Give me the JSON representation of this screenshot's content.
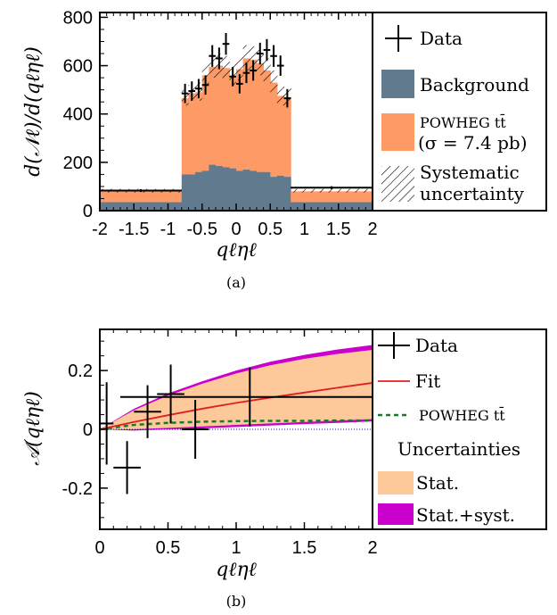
{
  "chart_data": [
    {
      "panel": "a",
      "type": "bar",
      "caption": "(a)",
      "xlabel": "qℓηℓ",
      "ylabel": "d(𝒩ℓ)/d(qℓηℓ)",
      "xlim": [
        -2,
        2
      ],
      "ylim": [
        0,
        820
      ],
      "xticks": [
        "-2",
        "-1.5",
        "-1",
        "-0.5",
        "0",
        "0.5",
        "1",
        "1.5",
        "2"
      ],
      "yticks": [
        "0",
        "200",
        "400",
        "600",
        "800"
      ],
      "grid": false,
      "legend_placement": "right",
      "colors": {
        "signal": "#fd9a66",
        "background": "#617a8e",
        "data": "#000000"
      },
      "bin_edges": [
        -2,
        -0.8,
        -0.7,
        -0.6,
        -0.5,
        -0.4,
        -0.3,
        -0.2,
        -0.1,
        0,
        0.1,
        0.2,
        0.3,
        0.4,
        0.5,
        0.6,
        0.7,
        0.8,
        2
      ],
      "series": [
        {
          "name": "Background",
          "values": [
            35,
            150,
            150,
            160,
            165,
            190,
            185,
            180,
            175,
            165,
            170,
            165,
            160,
            160,
            140,
            145,
            140,
            35
          ]
        },
        {
          "name": "POWHEG tt̄ (σ = 7.4 pb)",
          "values": [
            45,
            315,
            335,
            330,
            395,
            405,
            415,
            410,
            385,
            420,
            460,
            460,
            450,
            420,
            390,
            330,
            330,
            45
          ]
        }
      ],
      "systematic_band": {
        "name": "Systematic uncertainty",
        "up": [
          10,
          35,
          35,
          40,
          45,
          50,
          50,
          50,
          50,
          50,
          55,
          55,
          55,
          50,
          50,
          45,
          40,
          10
        ],
        "down": [
          5,
          30,
          30,
          35,
          40,
          45,
          45,
          45,
          45,
          45,
          50,
          50,
          50,
          45,
          45,
          40,
          35,
          5
        ]
      },
      "data": {
        "name": "Data",
        "x": [
          -1.4,
          -0.75,
          -0.65,
          -0.55,
          -0.45,
          -0.35,
          -0.25,
          -0.15,
          -0.05,
          0.05,
          0.15,
          0.25,
          0.35,
          0.45,
          0.55,
          0.65,
          0.75,
          1.4
        ],
        "xerr": [
          0.6,
          0.05,
          0.05,
          0.05,
          0.05,
          0.05,
          0.05,
          0.05,
          0.05,
          0.05,
          0.05,
          0.05,
          0.05,
          0.05,
          0.05,
          0.05,
          0.05,
          0.6
        ],
        "y": [
          83,
          485,
          495,
          505,
          520,
          640,
          630,
          690,
          555,
          525,
          570,
          580,
          650,
          665,
          640,
          600,
          465,
          95
        ],
        "yerr": [
          6,
          40,
          40,
          40,
          40,
          45,
          45,
          45,
          40,
          40,
          42,
          42,
          45,
          45,
          45,
          42,
          38,
          6
        ]
      },
      "legend": [
        "Data",
        "Background",
        "POWHEG tt̄",
        "(σ = 7.4 pb)",
        "Systematic",
        "uncertainty"
      ]
    },
    {
      "panel": "b",
      "type": "line",
      "caption": "(b)",
      "xlabel": "qℓηℓ",
      "ylabel": "𝒜(qℓηℓ)",
      "xlim": [
        0,
        2
      ],
      "ylim": [
        -0.34,
        0.34
      ],
      "xticks": [
        "0",
        "0.5",
        "1",
        "1.5",
        "2"
      ],
      "yticks": [
        "-0.2",
        "0",
        "0.2"
      ],
      "grid": false,
      "legend_placement": "right",
      "colors": {
        "stat": "#fdc99a",
        "stat_syst": "#cc00cc",
        "fit": "#e02020",
        "powheg": "#1a7a2a",
        "zero_line": "#0000cc"
      },
      "x": [
        0,
        0.25,
        0.5,
        0.75,
        1.0,
        1.25,
        1.5,
        1.75,
        2.0
      ],
      "fit": {
        "name": "Fit",
        "values": [
          0.0,
          0.025,
          0.048,
          0.07,
          0.09,
          0.108,
          0.125,
          0.142,
          0.158
        ]
      },
      "powheg": {
        "name": "POWHEG tt̄",
        "values": [
          0.0,
          0.015,
          0.022,
          0.026,
          0.028,
          0.029,
          0.029,
          0.03,
          0.03
        ]
      },
      "stat_band": {
        "name": "Stat.",
        "upper": [
          0.0,
          0.065,
          0.115,
          0.155,
          0.19,
          0.218,
          0.24,
          0.257,
          0.27
        ],
        "lower": [
          0.0,
          0.0,
          0.005,
          0.01,
          0.015,
          0.02,
          0.025,
          0.03,
          0.035
        ]
      },
      "stat_syst_band": {
        "name": "Stat.+syst.",
        "upper": [
          0.0,
          0.07,
          0.122,
          0.163,
          0.2,
          0.23,
          0.253,
          0.272,
          0.287
        ],
        "lower": [
          0.0,
          -0.004,
          0.0,
          0.003,
          0.008,
          0.013,
          0.018,
          0.022,
          0.027
        ]
      },
      "data": {
        "name": "Data",
        "x": [
          0.05,
          0.2,
          0.35,
          0.52,
          0.7,
          1.1
        ],
        "xerr": [
          0.05,
          0.1,
          0.1,
          0.1,
          0.1,
          0.95
        ],
        "y": [
          0.02,
          -0.13,
          0.06,
          0.12,
          0.0,
          0.11
        ],
        "yerr": [
          0.14,
          0.09,
          0.09,
          0.1,
          0.1,
          0.1
        ]
      },
      "legend": [
        "Data",
        "Fit",
        "POWHEG tt̄",
        "Uncertainties",
        "Stat.",
        "Stat.+syst."
      ]
    }
  ]
}
